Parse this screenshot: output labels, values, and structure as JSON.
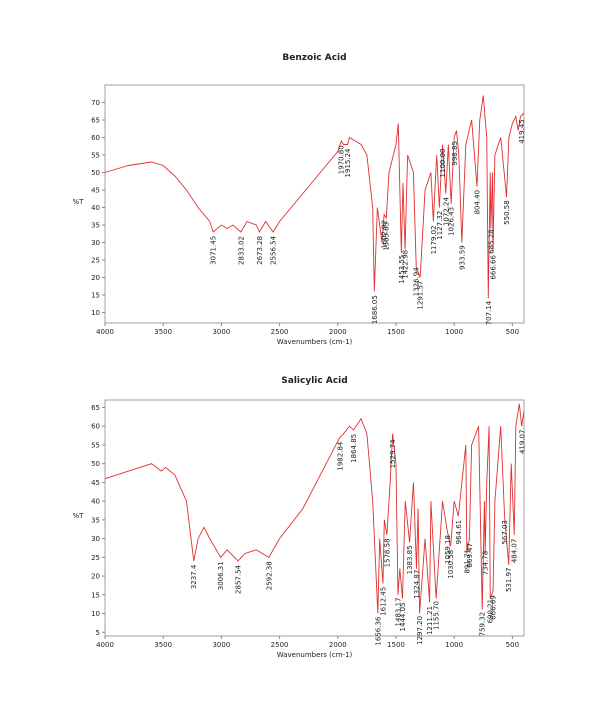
{
  "chart_data": [
    {
      "type": "line",
      "title": "Benzoic Acid",
      "x_label": "Wavenumbers (cm-1)",
      "y_label": "%T",
      "color": "#e03030",
      "xlim": [
        4000,
        400
      ],
      "ylim": [
        7,
        75
      ],
      "xticks": [
        4000,
        3500,
        3000,
        2500,
        2000,
        1500,
        1000,
        500
      ],
      "yticks": [
        10,
        15,
        20,
        25,
        30,
        35,
        40,
        45,
        50,
        55,
        60,
        65,
        70
      ],
      "x": [
        4000,
        3800,
        3600,
        3500,
        3400,
        3300,
        3200,
        3100,
        3071,
        3000,
        2950,
        2900,
        2833,
        2780,
        2700,
        2673,
        2620,
        2556,
        2500,
        2400,
        2300,
        2200,
        2100,
        2000,
        1970,
        1950,
        1915,
        1900,
        1850,
        1800,
        1750,
        1700,
        1686,
        1660,
        1620,
        1602,
        1583,
        1560,
        1500,
        1480,
        1454,
        1440,
        1422,
        1400,
        1350,
        1326,
        1292,
        1250,
        1200,
        1179,
        1150,
        1127,
        1100,
        1072,
        1050,
        1026,
        1000,
        980,
        960,
        934,
        900,
        850,
        804,
        780,
        750,
        720,
        707,
        690,
        685,
        670,
        667,
        650,
        600,
        550,
        530,
        500,
        470,
        450,
        430,
        400
      ],
      "values": [
        50,
        52,
        53,
        52,
        49,
        45,
        40,
        36,
        33,
        35,
        34,
        35,
        33,
        36,
        35,
        33,
        36,
        33,
        36,
        40,
        44,
        48,
        52,
        56,
        59,
        58,
        58,
        60,
        59,
        58,
        55,
        40,
        16,
        40,
        30,
        38,
        37,
        50,
        58,
        64,
        27,
        47,
        28,
        55,
        50,
        23,
        20,
        45,
        50,
        36,
        55,
        40,
        58,
        44,
        58,
        41,
        60,
        62,
        55,
        30,
        58,
        65,
        46,
        65,
        72,
        60,
        14,
        50,
        34,
        50,
        27,
        55,
        60,
        43,
        60,
        64,
        66,
        62,
        66,
        67
      ],
      "peaks": [
        3071.45,
        2833.02,
        2673.28,
        2556.54,
        {
          "value": 1970.8,
          "label": "1970.80"
        },
        1915.24,
        1686.05,
        1602.92,
        1583.83,
        1453.55,
        1422.98,
        1326.94,
        1291.57,
        1179.02,
        1127.32,
        {
          "value": 1100,
          "label": "1100.00"
        },
        1072.24,
        1026.43,
        998.85,
        933.59,
        {
          "value": 804.4,
          "label": "804.40"
        },
        707.14,
        685.28,
        666.66,
        550.58,
        419.45
      ]
    },
    {
      "type": "line",
      "title": "Salicylic Acid",
      "x_label": "Wavenumbers (cm-1)",
      "y_label": "%T",
      "color": "#e03030",
      "xlim": [
        4000,
        400
      ],
      "ylim": [
        4,
        67
      ],
      "xticks": [
        4000,
        3500,
        3000,
        2500,
        2000,
        1500,
        1000,
        500
      ],
      "yticks": [
        5,
        10,
        15,
        20,
        25,
        30,
        35,
        40,
        45,
        50,
        55,
        60,
        65
      ],
      "x": [
        4000,
        3800,
        3600,
        3515,
        3480,
        3400,
        3300,
        3237,
        3200,
        3150,
        3100,
        3006,
        2950,
        2857,
        2800,
        2700,
        2592,
        2500,
        2300,
        2200,
        2100,
        2000,
        1982,
        1950,
        1900,
        1864,
        1800,
        1750,
        1700,
        1656,
        1640,
        1612,
        1600,
        1578,
        1550,
        1529,
        1500,
        1483,
        1467,
        1444,
        1420,
        1383,
        1350,
        1324,
        1310,
        1297,
        1250,
        1211,
        1200,
        1155,
        1100,
        1059,
        1030,
        1000,
        964,
        900,
        891,
        869,
        850,
        790,
        759,
        740,
        734,
        720,
        700,
        690,
        666,
        650,
        600,
        567,
        531,
        510,
        484,
        470,
        440,
        420,
        400
      ],
      "values": [
        46,
        48,
        50,
        48,
        49,
        47,
        40,
        24,
        30,
        33,
        30,
        25,
        27,
        24,
        26,
        27,
        25,
        30,
        38,
        44,
        50,
        56,
        57,
        58,
        60,
        59,
        62,
        58,
        40,
        10,
        30,
        18,
        35,
        31,
        45,
        58,
        50,
        15,
        22,
        14,
        40,
        29,
        45,
        22,
        38,
        10,
        30,
        13,
        40,
        14,
        40,
        32,
        28,
        40,
        36,
        55,
        26,
        30,
        55,
        60,
        11,
        40,
        26,
        45,
        60,
        14,
        16,
        40,
        60,
        36,
        23,
        50,
        31,
        60,
        66,
        60,
        64
      ],
      "peaks": [
        3237.4,
        3006.31,
        2857.54,
        2592.38,
        1982.84,
        1864.85,
        1656.36,
        1612.45,
        1578.58,
        1529.74,
        1483.17,
        1444.05,
        1383.85,
        1324.87,
        {
          "value": 1297.2,
          "label": "1297.20"
        },
        1211.21,
        {
          "value": 1155.7,
          "label": "1155.70"
        },
        1059.18,
        1030.58,
        964.61,
        891.71,
        869.47,
        759.32,
        734.78,
        690.21,
        666.69,
        567.03,
        531.97,
        484.07,
        419.07
      ]
    }
  ]
}
